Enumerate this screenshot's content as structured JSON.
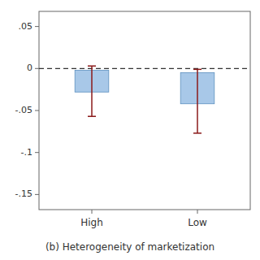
{
  "chart_data": {
    "type": "bar",
    "categories": [
      "High",
      "Low"
    ],
    "values": [
      -0.002,
      -0.005
    ],
    "bottoms": [
      -0.028,
      -0.042
    ],
    "error_low": [
      -0.057,
      -0.077
    ],
    "error_high": [
      0.003,
      -0.001
    ],
    "reference_line": 0.0,
    "color": "#a8c8e8",
    "ylim": [
      -0.168,
      0.068
    ],
    "yticks": [
      {
        "value": -0.15,
        "label": "-.15"
      },
      {
        "value": -0.1,
        "label": "-.1"
      },
      {
        "value": -0.05,
        "label": "-.05"
      },
      0.0,
      {
        "value": 0.05,
        "label": ".05"
      }
    ],
    "caption": "(b)  Heterogeneity of marketization",
    "grid": false
  }
}
